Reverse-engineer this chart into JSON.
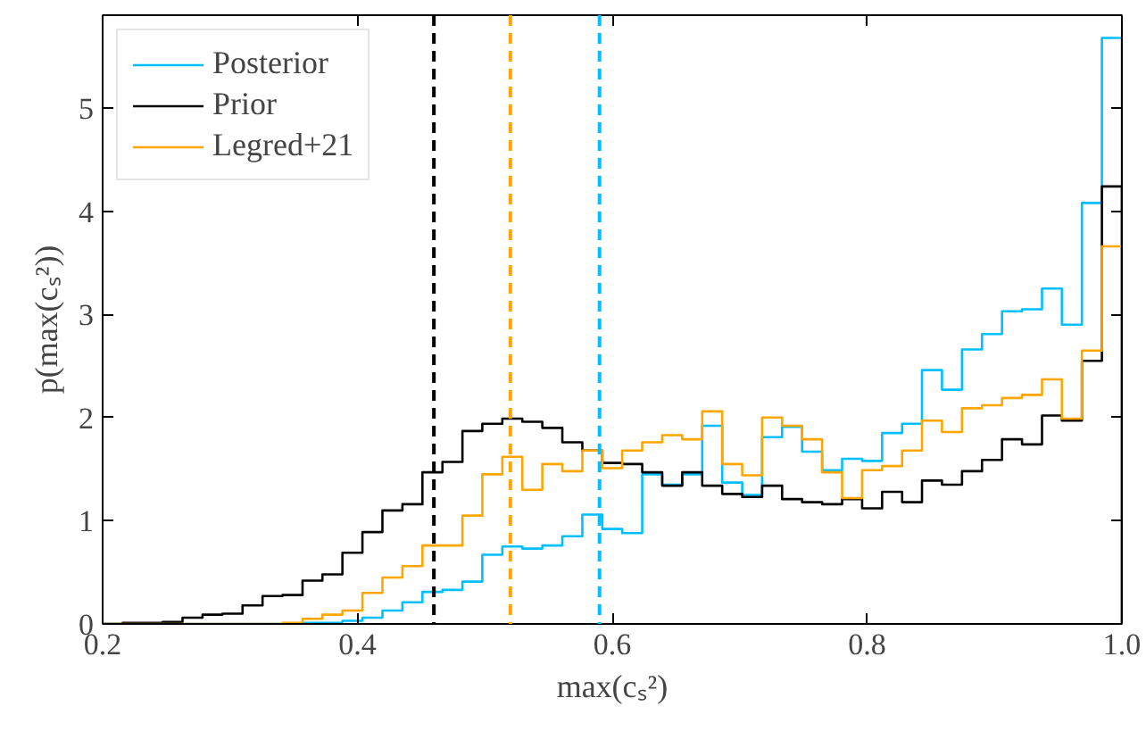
{
  "chart_data": {
    "type": "histogram",
    "xlabel": "max(cₛ²)",
    "ylabel": "p(max(cₛ²))",
    "bins": [
      0.2,
      0.2157,
      0.2314,
      0.2471,
      0.2627,
      0.2784,
      0.2941,
      0.3098,
      0.3255,
      0.3412,
      0.3569,
      0.3725,
      0.3882,
      0.4039,
      0.4196,
      0.4353,
      0.451,
      0.4667,
      0.4824,
      0.498,
      0.5137,
      0.5294,
      0.5451,
      0.5608,
      0.5765,
      0.5922,
      0.6078,
      0.6235,
      0.6392,
      0.6549,
      0.6706,
      0.6863,
      0.702,
      0.7176,
      0.7333,
      0.749,
      0.7647,
      0.7804,
      0.7961,
      0.8118,
      0.8275,
      0.8431,
      0.8588,
      0.8745,
      0.8902,
      0.9059,
      0.9216,
      0.9373,
      0.9529,
      0.9686,
      0.9843,
      1.0
    ],
    "series": [
      {
        "name": "Posterior",
        "color": "#00bfff",
        "values": [
          0,
          0,
          0,
          0,
          0,
          0,
          0,
          0,
          0,
          0,
          0.01,
          0.01,
          0.03,
          0.06,
          0.13,
          0.21,
          0.31,
          0.33,
          0.41,
          0.67,
          0.75,
          0.73,
          0.76,
          0.85,
          1.06,
          0.92,
          0.88,
          1.45,
          1.35,
          1.45,
          1.92,
          1.37,
          1.25,
          1.81,
          1.91,
          1.67,
          1.49,
          1.6,
          1.58,
          1.85,
          1.94,
          2.46,
          2.27,
          2.66,
          2.81,
          3.03,
          3.05,
          3.25,
          2.9,
          4.08,
          5.68
        ]
      },
      {
        "name": "Prior",
        "color": "#000000",
        "values": [
          0,
          0.01,
          0.01,
          0.02,
          0.06,
          0.09,
          0.1,
          0.18,
          0.27,
          0.28,
          0.42,
          0.48,
          0.69,
          0.89,
          1.1,
          1.16,
          1.47,
          1.57,
          1.87,
          1.94,
          1.99,
          1.96,
          1.9,
          1.76,
          1.68,
          1.56,
          1.55,
          1.47,
          1.34,
          1.47,
          1.34,
          1.26,
          1.23,
          1.34,
          1.21,
          1.18,
          1.16,
          1.21,
          1.12,
          1.28,
          1.18,
          1.39,
          1.35,
          1.48,
          1.59,
          1.79,
          1.74,
          2.02,
          1.97,
          2.55,
          4.24
        ]
      },
      {
        "name": "Legred+21",
        "color": "#ffa500",
        "values": [
          0,
          0,
          0,
          0,
          0,
          0,
          0,
          0,
          0,
          0.01,
          0.05,
          0.09,
          0.13,
          0.3,
          0.45,
          0.56,
          0.76,
          0.76,
          1.05,
          1.45,
          1.62,
          1.3,
          1.55,
          1.48,
          1.68,
          1.51,
          1.68,
          1.76,
          1.83,
          1.79,
          2.06,
          1.55,
          1.44,
          2.0,
          1.92,
          1.79,
          1.47,
          1.22,
          1.49,
          1.53,
          1.68,
          1.97,
          1.86,
          2.09,
          2.12,
          2.19,
          2.22,
          2.37,
          1.99,
          2.65,
          3.66
        ]
      }
    ],
    "ref_lines": [
      {
        "axis": "x",
        "value": 0.46,
        "color": "#000000",
        "line_style": "dashed"
      },
      {
        "axis": "x",
        "value": 0.52,
        "color": "#ffa500",
        "line_style": "dashed"
      },
      {
        "axis": "x",
        "value": 0.59,
        "color": "#00bfff",
        "line_style": "dashed"
      }
    ],
    "xlim": [
      0.2,
      1.0
    ],
    "ylim": [
      0,
      5.9
    ],
    "xticks": [
      {
        "value": 0.2,
        "label": "0.2"
      },
      {
        "value": 0.4,
        "label": "0.4"
      },
      {
        "value": 0.6,
        "label": "0.6"
      },
      {
        "value": 0.8,
        "label": "0.8"
      },
      {
        "value": 1.0,
        "label": "1.0"
      }
    ],
    "yticks": [
      0,
      1,
      2,
      3,
      4,
      5
    ],
    "legend": "top left",
    "grid": false
  }
}
